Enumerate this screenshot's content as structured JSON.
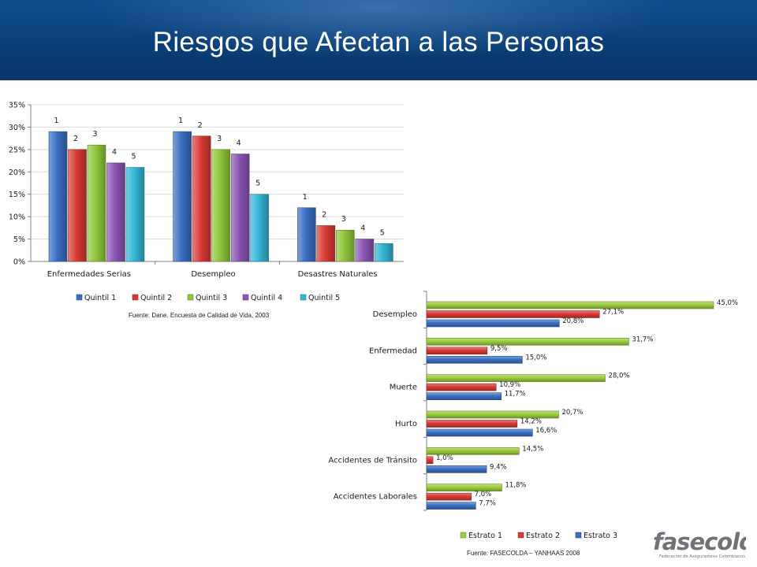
{
  "header": {
    "title": "Riesgos que Afectan a las Personas"
  },
  "colors": {
    "header_bg": "#0a3f78",
    "quintil": [
      "#3a6fc4",
      "#d93a34",
      "#8fc63a",
      "#8a55b3",
      "#33b6d6"
    ],
    "estrato": [
      "#9bcc3c",
      "#d93a34",
      "#3a6fc4"
    ]
  },
  "chart_data": [
    {
      "type": "bar",
      "categories": [
        "Enfermedades Serias",
        "Desempleo",
        "Desastres Naturales"
      ],
      "series": [
        {
          "name": "Quintil 1",
          "values": [
            29,
            29,
            12
          ],
          "labels": [
            "1",
            "1",
            "1"
          ]
        },
        {
          "name": "Quintil 2",
          "values": [
            25,
            28,
            8
          ],
          "labels": [
            "2",
            "2",
            "2"
          ]
        },
        {
          "name": "Quintil 3",
          "values": [
            26,
            25,
            7
          ],
          "labels": [
            "3",
            "3",
            "3"
          ]
        },
        {
          "name": "Quintil 4",
          "values": [
            22,
            24,
            5
          ],
          "labels": [
            "4",
            "4",
            "4"
          ]
        },
        {
          "name": "Quintil 5",
          "values": [
            21,
            15,
            4
          ],
          "labels": [
            "5",
            "5",
            "5"
          ]
        }
      ],
      "ylim": [
        0,
        35
      ],
      "yticks": [
        "0%",
        "5%",
        "10%",
        "15%",
        "20%",
        "25%",
        "30%",
        "35%"
      ],
      "legend": "bottom",
      "source": "Fuente: Dane. Encuesta de Calidad de Vida, 2003"
    },
    {
      "type": "bar",
      "orientation": "horizontal",
      "categories": [
        "Desempleo",
        "Enfermedad",
        "Muerte",
        "Hurto",
        "Accidentes de Tránsito",
        "Accidentes Laborales"
      ],
      "series": [
        {
          "name": "Estrato 1",
          "values": [
            45.0,
            31.7,
            28.0,
            20.7,
            14.5,
            11.8
          ],
          "labels": [
            "45,0%",
            "31,7%",
            "28,0%",
            "20,7%",
            "14,5%",
            "11,8%"
          ]
        },
        {
          "name": "Estrato 2",
          "values": [
            27.1,
            9.5,
            10.9,
            14.2,
            1.0,
            7.0
          ],
          "labels": [
            "27,1%",
            "9,5%",
            "10,9%",
            "14,2%",
            "1,0%",
            "7,0%"
          ]
        },
        {
          "name": "Estrato 3",
          "values": [
            20.8,
            15.0,
            11.7,
            16.6,
            9.4,
            7.7
          ],
          "labels": [
            "20,8%",
            "15,0%",
            "11,7%",
            "16,6%",
            "9,4%",
            "7,7%"
          ]
        }
      ],
      "xlim": [
        0,
        45
      ],
      "legend": "bottom",
      "source": "Fuente: FASECOLDA – YANHAAS 2008"
    }
  ],
  "logo": {
    "text": "fasecolda",
    "tagline": "Federación de Aseguradores Colombianos"
  }
}
